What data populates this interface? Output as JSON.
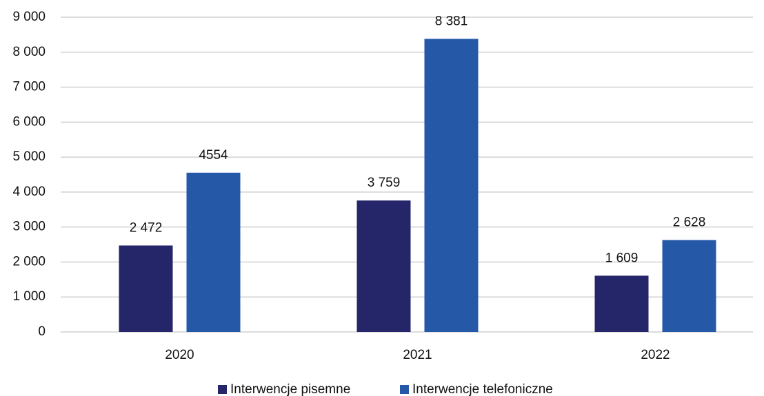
{
  "chart_data": {
    "type": "bar",
    "categories": [
      "2020",
      "2021",
      "2022"
    ],
    "series": [
      {
        "name": "Interwencje pisemne",
        "color": "#25256a",
        "values": [
          2472,
          3759,
          1609
        ],
        "value_labels": [
          "2 472",
          "3 759",
          "1 609"
        ]
      },
      {
        "name": "Interwencje telefoniczne",
        "color": "#2559a8",
        "values": [
          4554,
          8381,
          2628
        ],
        "value_labels": [
          "4554",
          "8 381",
          "2 628"
        ]
      }
    ],
    "ylim": [
      0,
      9000
    ],
    "yticks": [
      0,
      {
        "value": 1000,
        "label": "1 000"
      },
      {
        "value": 2000,
        "label": "2 000"
      },
      {
        "value": 3000,
        "label": "3 000"
      },
      {
        "value": 4000,
        "label": "4 000"
      },
      {
        "value": 5000,
        "label": "5 000"
      },
      {
        "value": 6000,
        "label": "6 000"
      },
      {
        "value": 7000,
        "label": "7 000"
      },
      {
        "value": 8000,
        "label": "8 000"
      },
      {
        "value": 9000,
        "label": "9 000"
      }
    ],
    "grid": true,
    "legend": "bottom"
  }
}
